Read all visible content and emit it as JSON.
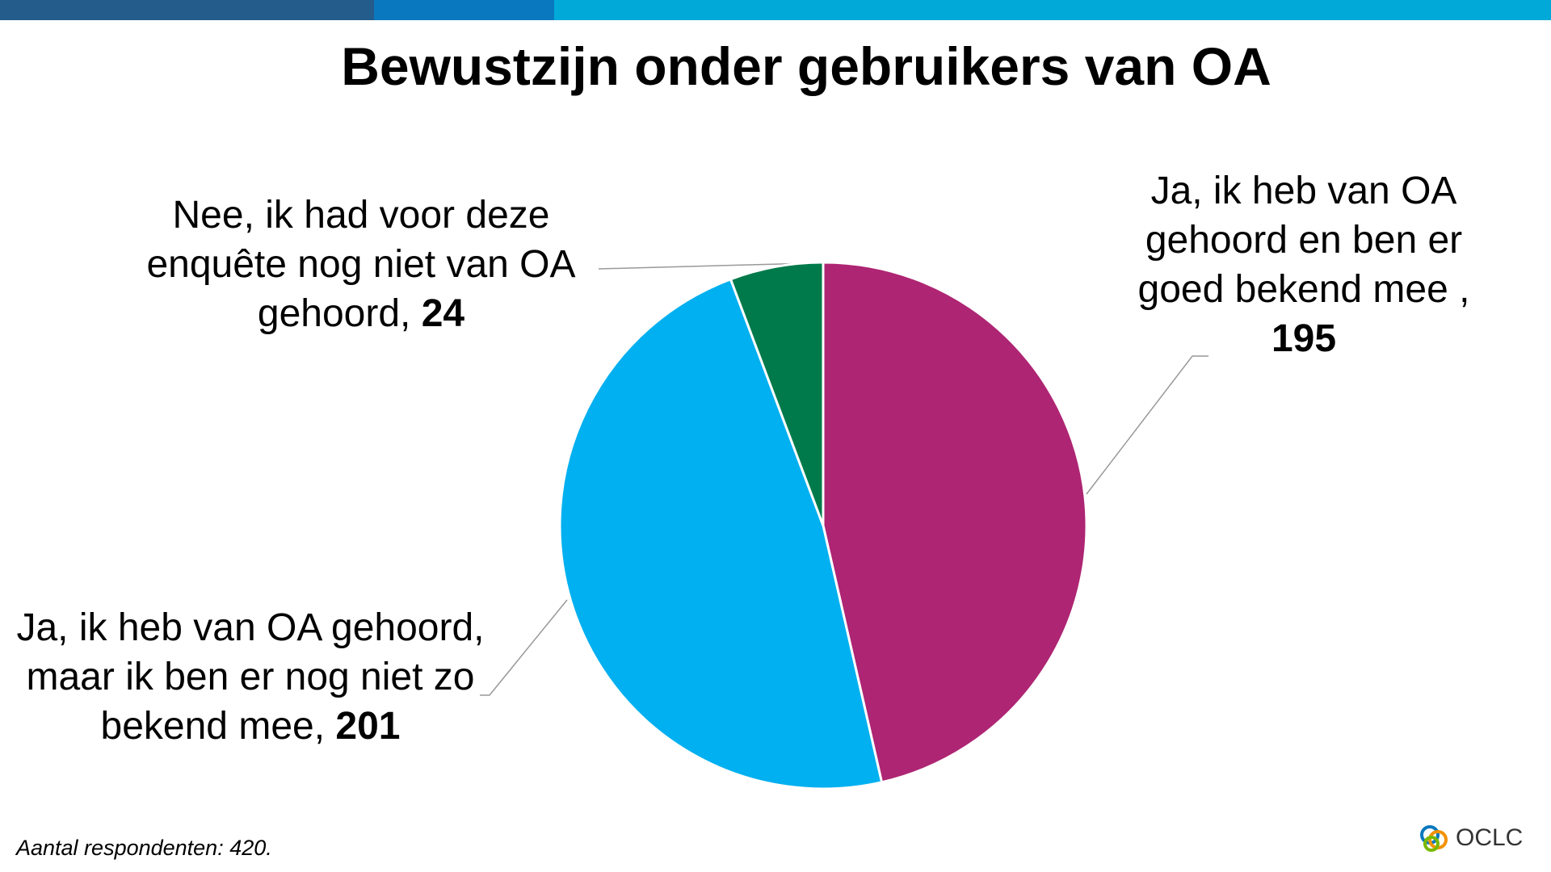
{
  "chart_data": {
    "type": "pie",
    "title": "Bewustzijn onder gebruikers van OA",
    "categories": [
      "Ja, ik heb van OA gehoord en ben er goed bekend mee ,",
      "Ja, ik heb van OA gehoord, maar ik ben er nog niet zo bekend mee,",
      "Nee, ik had voor deze enquête nog niet van OA gehoord,"
    ],
    "series": [
      {
        "values": [
          195,
          201,
          24
        ],
        "colors": [
          "#ae2573",
          "#00b0f0",
          "#007a4a"
        ]
      }
    ],
    "footnote": "Aantal respondenten: 420.",
    "logo": "OCLC"
  }
}
